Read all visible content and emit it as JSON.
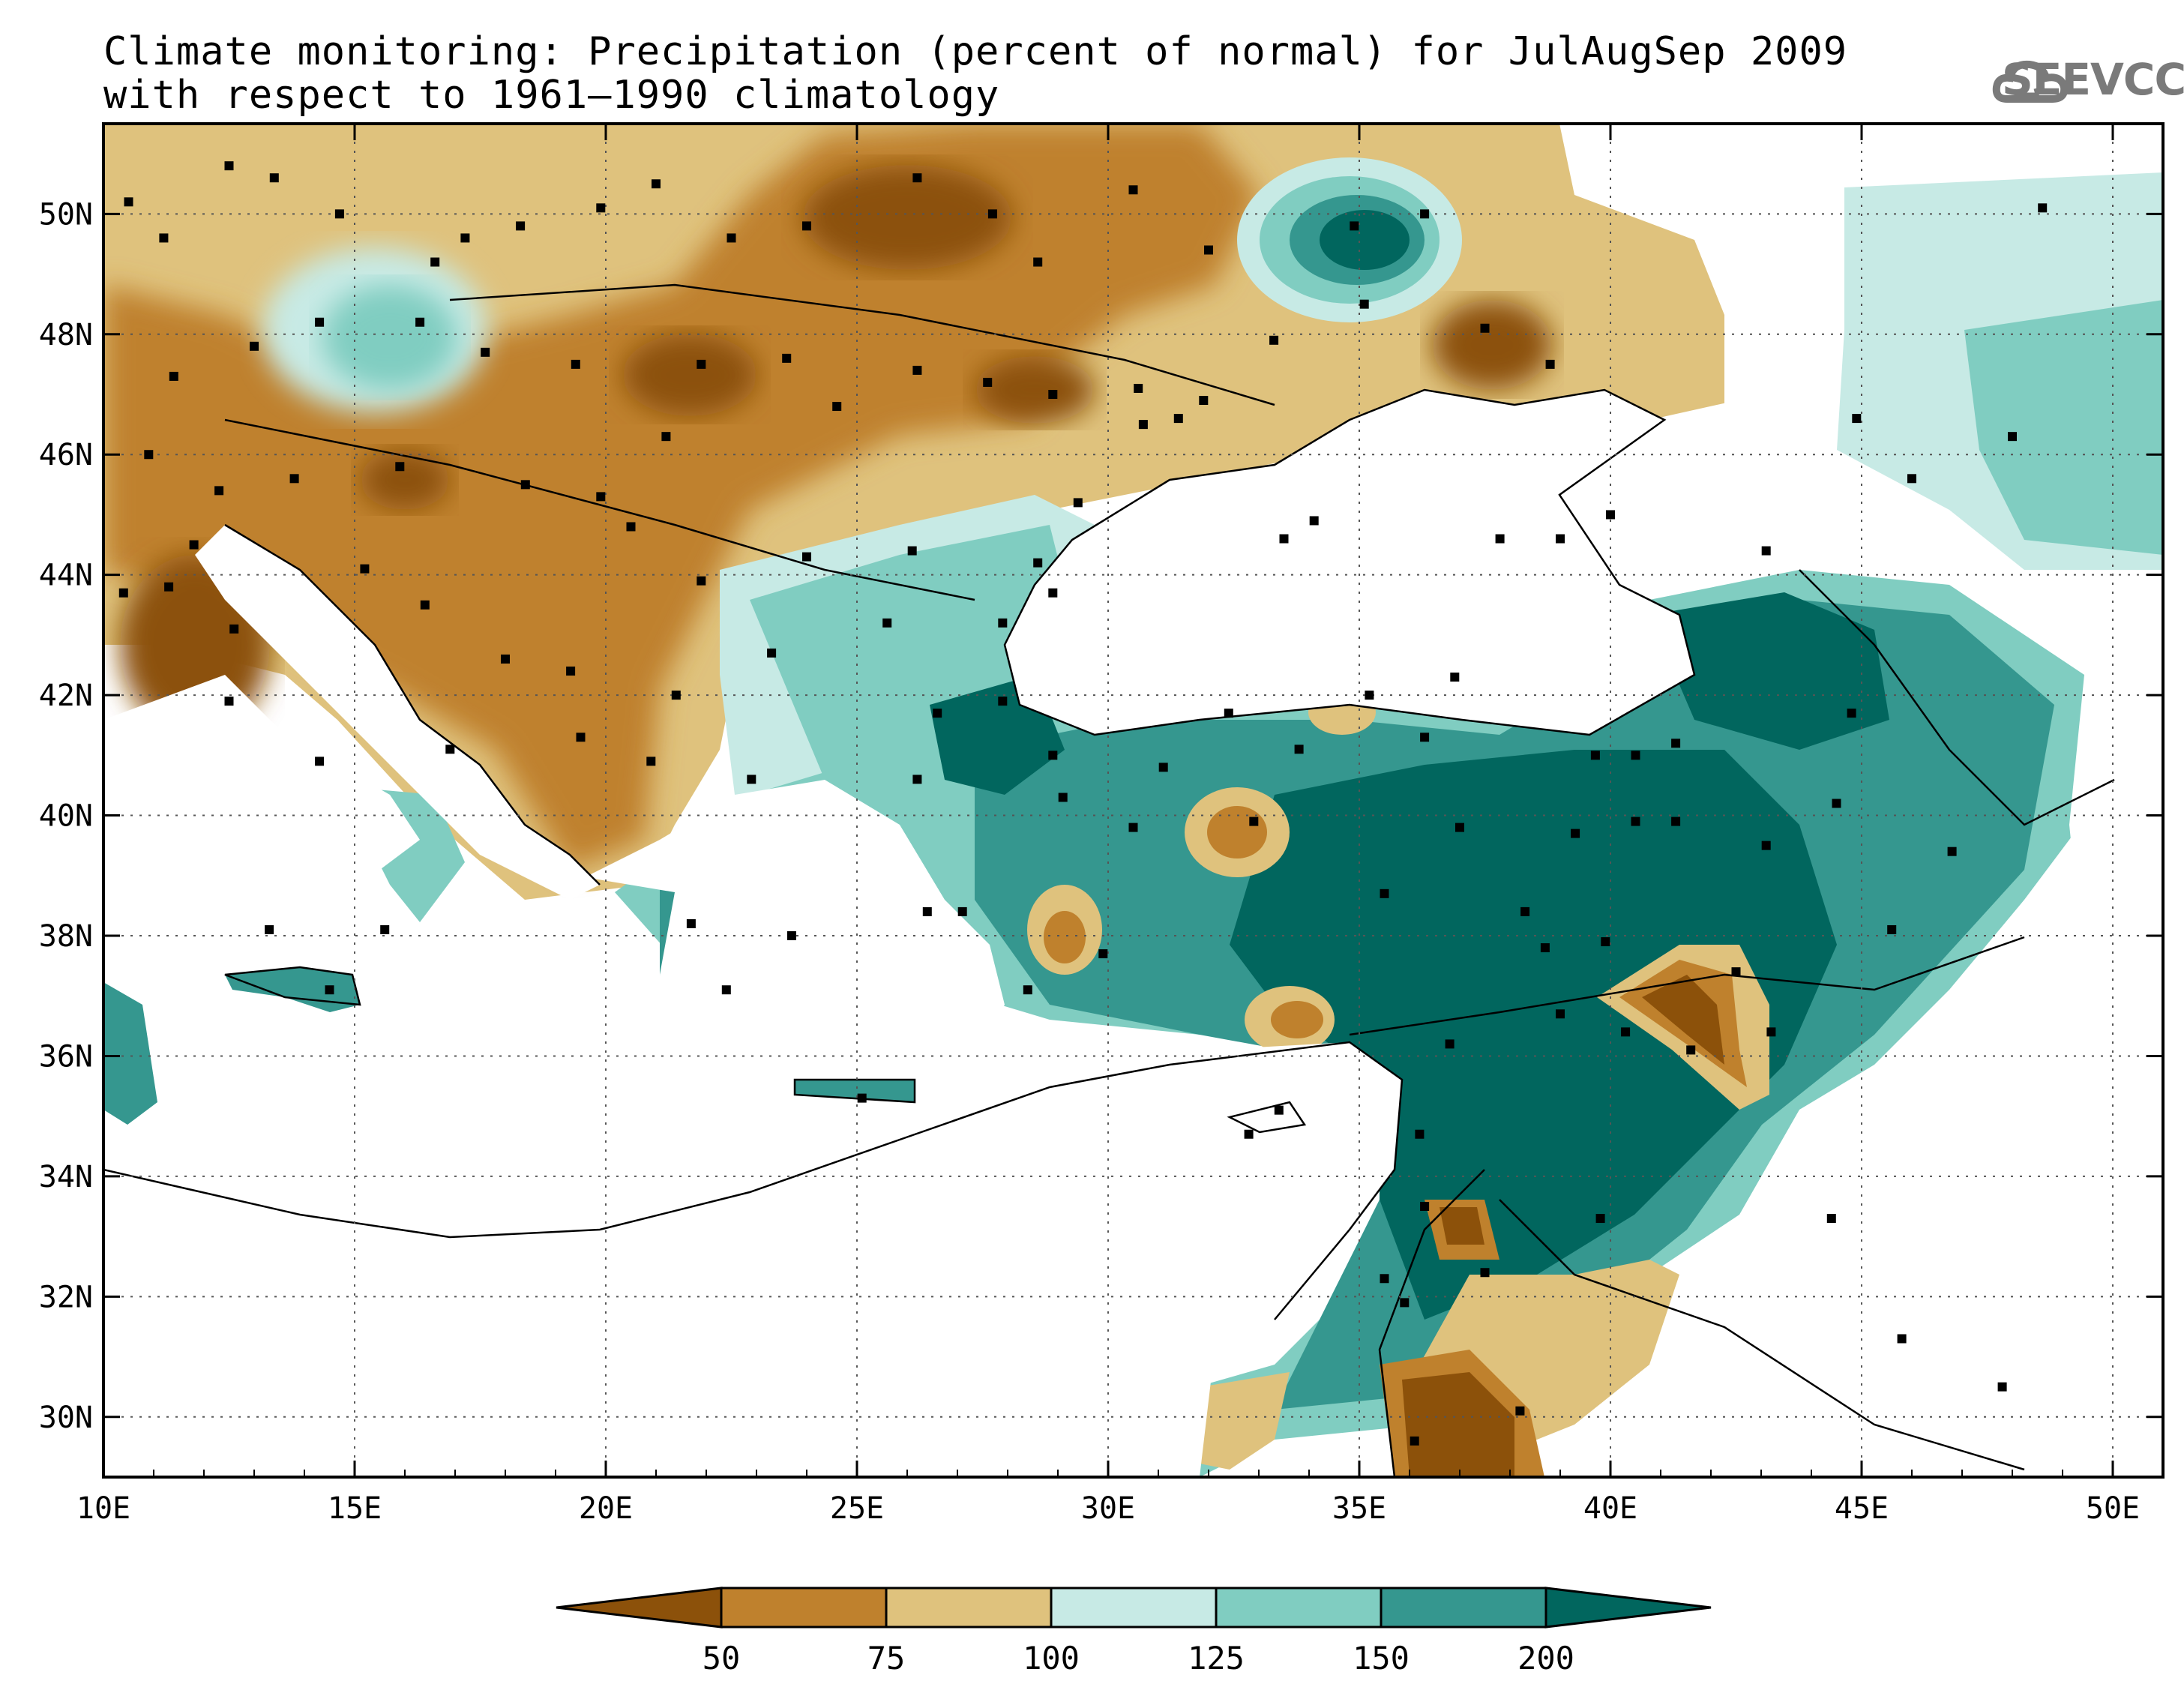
{
  "title": {
    "line1": "Climate monitoring: Precipitation (percent of normal) for JulAugSep 2009",
    "line2": "with respect to 1961–1990 climatology"
  },
  "logo": {
    "icon": "cloud-icon",
    "text": "SEEVCCC"
  },
  "axes": {
    "x_ticks": [
      "10E",
      "15E",
      "20E",
      "25E",
      "30E",
      "35E",
      "40E",
      "45E",
      "50E"
    ],
    "y_ticks": [
      "50N",
      "48N",
      "46N",
      "44N",
      "42N",
      "40N",
      "38N",
      "36N",
      "34N",
      "32N",
      "30N"
    ],
    "x_values": [
      10,
      15,
      20,
      25,
      30,
      35,
      40,
      45,
      50
    ],
    "y_values": [
      50,
      48,
      46,
      44,
      42,
      40,
      38,
      36,
      34,
      32,
      30
    ],
    "lon_range": [
      10,
      51
    ],
    "lat_range": [
      29,
      51.5
    ]
  },
  "colorbar": {
    "labels": [
      "50",
      "75",
      "100",
      "125",
      "150",
      "200"
    ],
    "colors": [
      "#8c510a",
      "#bf812d",
      "#dfc27d",
      "#c7eae5",
      "#80cdc1",
      "#35978f",
      "#01665e"
    ]
  },
  "stations": [
    [
      10.5,
      50.2
    ],
    [
      11.2,
      49.6
    ],
    [
      12.5,
      50.8
    ],
    [
      13.4,
      50.6
    ],
    [
      14.7,
      50.0
    ],
    [
      16.6,
      49.2
    ],
    [
      17.2,
      49.6
    ],
    [
      18.3,
      49.8
    ],
    [
      19.9,
      50.1
    ],
    [
      21.0,
      50.5
    ],
    [
      22.5,
      49.6
    ],
    [
      24.0,
      49.8
    ],
    [
      26.2,
      50.6
    ],
    [
      27.7,
      50.0
    ],
    [
      28.6,
      49.2
    ],
    [
      30.5,
      50.4
    ],
    [
      32.0,
      49.4
    ],
    [
      34.9,
      49.8
    ],
    [
      36.3,
      50.0
    ],
    [
      35.1,
      48.5
    ],
    [
      37.5,
      48.1
    ],
    [
      38.8,
      47.5
    ],
    [
      33.3,
      47.9
    ],
    [
      31.9,
      46.9
    ],
    [
      30.7,
      46.5
    ],
    [
      28.9,
      47.0
    ],
    [
      27.6,
      47.2
    ],
    [
      26.2,
      47.4
    ],
    [
      24.6,
      46.8
    ],
    [
      23.6,
      47.6
    ],
    [
      21.9,
      47.5
    ],
    [
      21.2,
      46.3
    ],
    [
      19.4,
      47.5
    ],
    [
      17.6,
      47.7
    ],
    [
      16.3,
      48.2
    ],
    [
      14.3,
      48.2
    ],
    [
      13.0,
      47.8
    ],
    [
      11.4,
      47.3
    ],
    [
      10.9,
      46.0
    ],
    [
      12.3,
      45.4
    ],
    [
      13.8,
      45.6
    ],
    [
      15.9,
      45.8
    ],
    [
      18.4,
      45.5
    ],
    [
      19.9,
      45.3
    ],
    [
      20.5,
      44.8
    ],
    [
      21.9,
      43.9
    ],
    [
      23.3,
      42.7
    ],
    [
      25.6,
      43.2
    ],
    [
      27.9,
      43.2
    ],
    [
      28.6,
      44.2
    ],
    [
      26.1,
      44.4
    ],
    [
      24.0,
      44.3
    ],
    [
      21.4,
      42.0
    ],
    [
      19.3,
      42.4
    ],
    [
      20.9,
      40.9
    ],
    [
      22.9,
      40.6
    ],
    [
      19.5,
      41.3
    ],
    [
      18.0,
      42.6
    ],
    [
      16.4,
      43.5
    ],
    [
      15.2,
      44.1
    ],
    [
      12.5,
      41.9
    ],
    [
      14.3,
      40.9
    ],
    [
      16.9,
      41.1
    ],
    [
      15.6,
      38.1
    ],
    [
      13.3,
      38.1
    ],
    [
      14.5,
      37.1
    ],
    [
      11.8,
      44.5
    ],
    [
      10.4,
      43.7
    ],
    [
      11.3,
      43.8
    ],
    [
      12.6,
      43.1
    ],
    [
      23.7,
      38.0
    ],
    [
      21.7,
      38.2
    ],
    [
      22.4,
      37.1
    ],
    [
      25.1,
      35.3
    ],
    [
      26.4,
      38.4
    ],
    [
      27.1,
      38.4
    ],
    [
      28.4,
      37.1
    ],
    [
      29.1,
      40.3
    ],
    [
      30.5,
      39.8
    ],
    [
      32.9,
      39.9
    ],
    [
      35.5,
      38.7
    ],
    [
      36.3,
      41.3
    ],
    [
      37.0,
      39.8
    ],
    [
      38.3,
      38.4
    ],
    [
      39.3,
      39.7
    ],
    [
      40.5,
      39.9
    ],
    [
      41.3,
      41.2
    ],
    [
      41.3,
      39.9
    ],
    [
      43.1,
      39.5
    ],
    [
      44.5,
      40.2
    ],
    [
      44.8,
      41.7
    ],
    [
      46.8,
      39.4
    ],
    [
      45.6,
      38.1
    ],
    [
      43.2,
      36.4
    ],
    [
      41.6,
      36.1
    ],
    [
      39.0,
      36.7
    ],
    [
      36.8,
      36.2
    ],
    [
      36.2,
      34.7
    ],
    [
      36.3,
      33.5
    ],
    [
      35.5,
      32.3
    ],
    [
      35.9,
      31.9
    ],
    [
      37.5,
      32.4
    ],
    [
      38.2,
      30.1
    ],
    [
      36.1,
      29.6
    ],
    [
      33.4,
      35.1
    ],
    [
      32.8,
      34.7
    ],
    [
      39.8,
      33.3
    ],
    [
      44.4,
      33.3
    ],
    [
      47.8,
      30.5
    ],
    [
      45.8,
      31.3
    ],
    [
      48.0,
      46.3
    ],
    [
      46.0,
      45.6
    ],
    [
      48.6,
      50.1
    ],
    [
      44.9,
      46.6
    ],
    [
      43.1,
      44.4
    ],
    [
      40.0,
      45.0
    ],
    [
      39.0,
      44.6
    ],
    [
      37.8,
      44.6
    ],
    [
      34.1,
      44.9
    ],
    [
      33.5,
      44.6
    ],
    [
      30.6,
      47.1
    ],
    [
      31.4,
      46.6
    ],
    [
      29.4,
      45.2
    ],
    [
      28.9,
      43.7
    ],
    [
      27.9,
      41.9
    ],
    [
      26.6,
      41.7
    ],
    [
      28.9,
      41.0
    ],
    [
      31.1,
      40.8
    ],
    [
      33.8,
      41.1
    ],
    [
      32.4,
      41.7
    ],
    [
      35.2,
      42.0
    ],
    [
      36.9,
      42.3
    ],
    [
      39.7,
      41.0
    ],
    [
      40.5,
      41.0
    ],
    [
      38.7,
      37.8
    ],
    [
      39.9,
      37.9
    ],
    [
      40.3,
      36.4
    ],
    [
      42.5,
      37.4
    ],
    [
      26.2,
      40.6
    ],
    [
      29.9,
      37.7
    ]
  ]
}
